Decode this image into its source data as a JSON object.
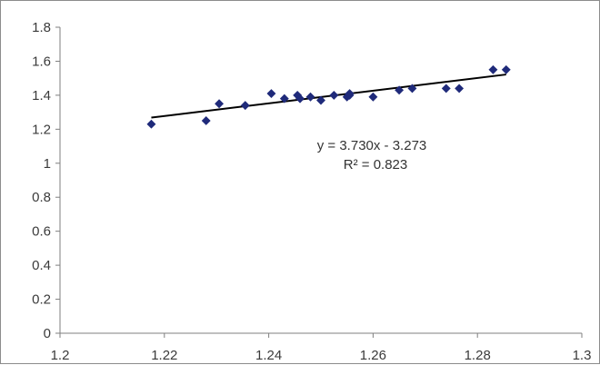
{
  "chart_data": {
    "type": "scatter",
    "title": "",
    "xlabel": "",
    "ylabel": "",
    "xlim": [
      1.2,
      1.3
    ],
    "ylim": [
      0,
      1.8
    ],
    "x_ticks": [
      "1.2",
      "1.22",
      "1.24",
      "1.26",
      "1.28",
      "1.3"
    ],
    "y_ticks": [
      "0",
      "0.2",
      "0.4",
      "0.6",
      "0.8",
      "1",
      "1.2",
      "1.4",
      "1.6",
      "1.8"
    ],
    "grid": false,
    "legend": "none",
    "marker_color": "#1f2a7a",
    "line_color": "#000000",
    "points": [
      {
        "x": 1.2175,
        "y": 1.23
      },
      {
        "x": 1.228,
        "y": 1.25
      },
      {
        "x": 1.2305,
        "y": 1.35
      },
      {
        "x": 1.2355,
        "y": 1.34
      },
      {
        "x": 1.2405,
        "y": 1.41
      },
      {
        "x": 1.243,
        "y": 1.38
      },
      {
        "x": 1.2455,
        "y": 1.4
      },
      {
        "x": 1.246,
        "y": 1.38
      },
      {
        "x": 1.248,
        "y": 1.39
      },
      {
        "x": 1.25,
        "y": 1.37
      },
      {
        "x": 1.2525,
        "y": 1.4
      },
      {
        "x": 1.255,
        "y": 1.39
      },
      {
        "x": 1.2555,
        "y": 1.41
      },
      {
        "x": 1.2555,
        "y": 1.4
      },
      {
        "x": 1.26,
        "y": 1.39
      },
      {
        "x": 1.265,
        "y": 1.43
      },
      {
        "x": 1.2675,
        "y": 1.44
      },
      {
        "x": 1.274,
        "y": 1.44
      },
      {
        "x": 1.2765,
        "y": 1.44
      },
      {
        "x": 1.283,
        "y": 1.55
      },
      {
        "x": 1.2855,
        "y": 1.55
      }
    ],
    "trendline": {
      "slope": 3.73,
      "intercept": -3.273,
      "x_range": [
        1.2175,
        1.2855
      ]
    },
    "annotations": {
      "equation": "y = 3.730x - 3.273",
      "r_squared": "R² = 0.823"
    }
  }
}
